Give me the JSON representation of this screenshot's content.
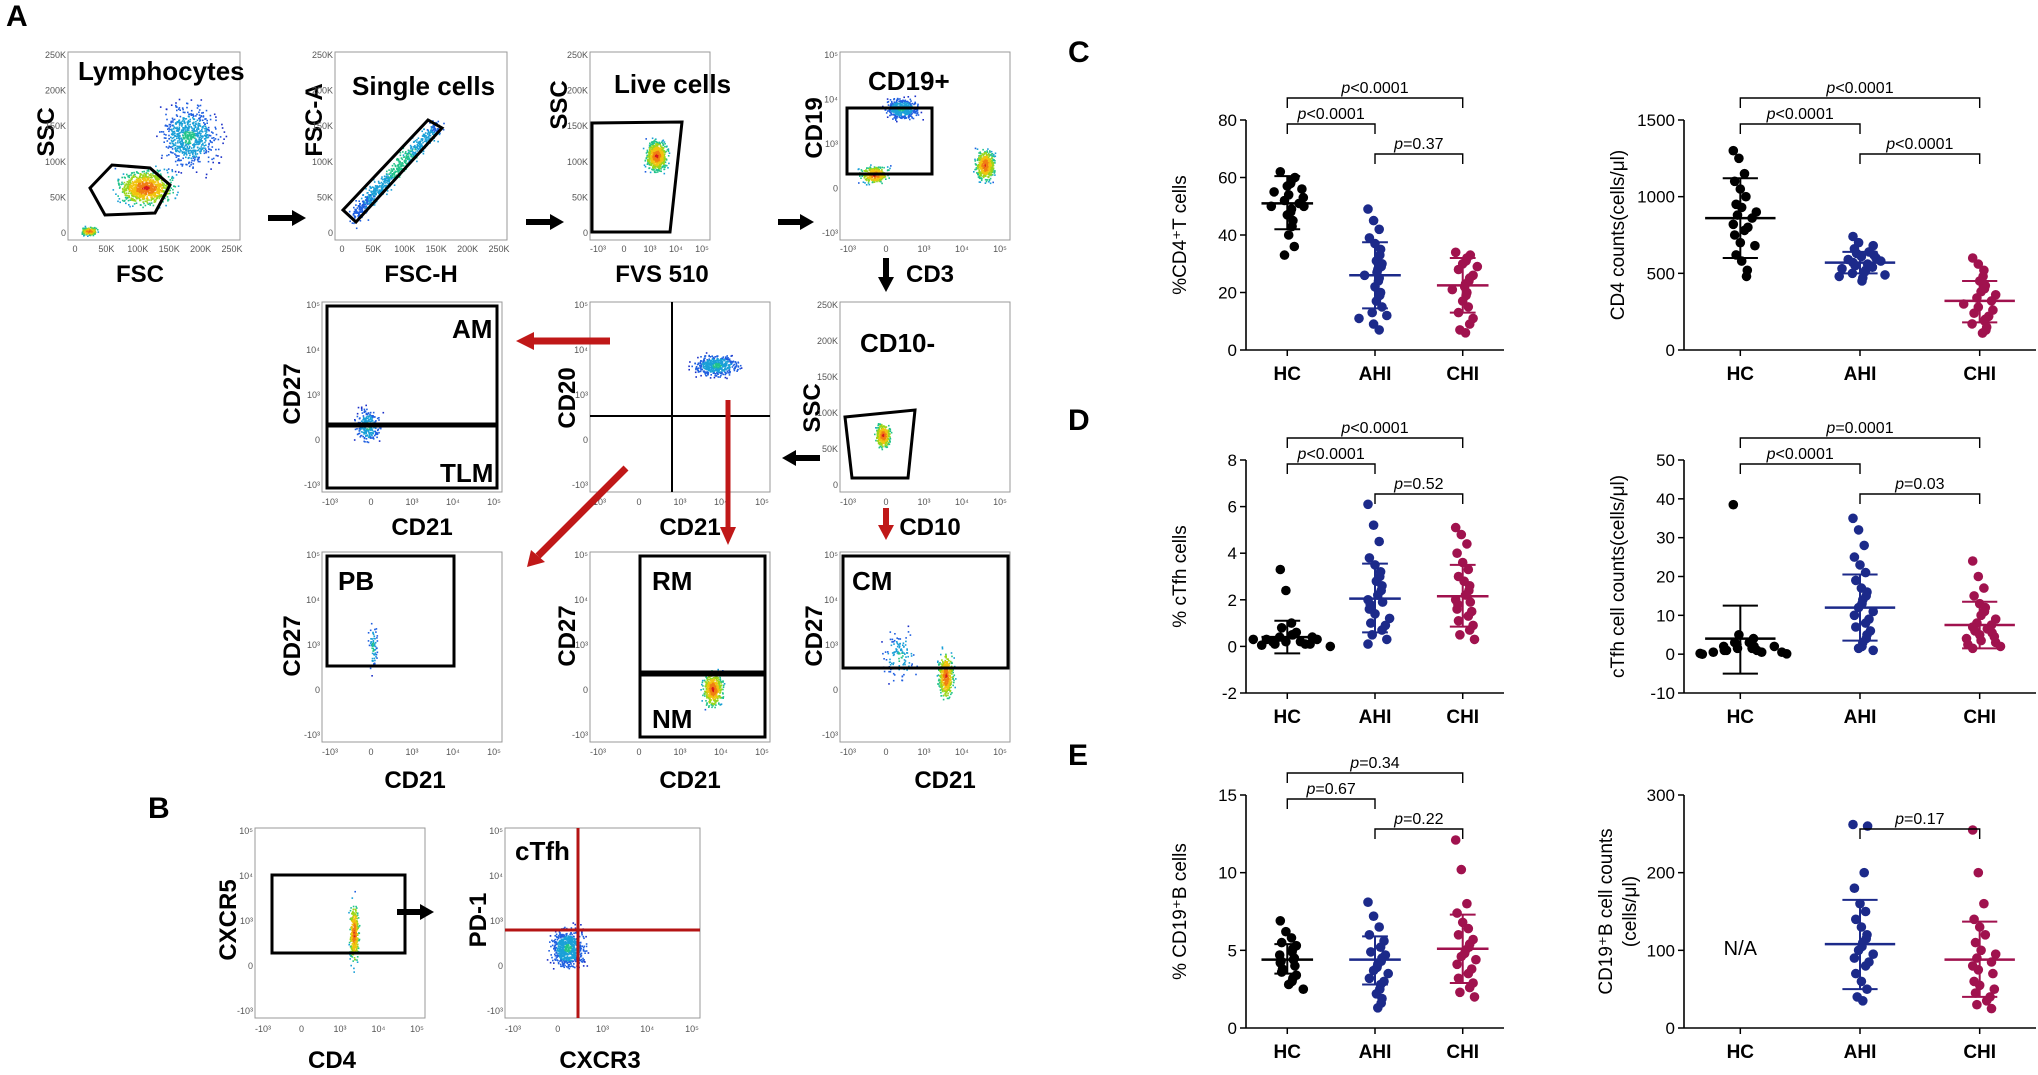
{
  "panels": [
    "A",
    "B",
    "C",
    "D",
    "E"
  ],
  "flow": {
    "plots": [
      {
        "id": "lym",
        "name": "Lymphocytes",
        "x_label": "FSC",
        "y_label": "SSC",
        "x_ticks": [
          "0",
          "50K",
          "100K",
          "150K",
          "200K",
          "250K"
        ],
        "y_ticks": [
          "250K",
          "200K",
          "150K",
          "100K",
          "50K",
          "0"
        ],
        "gates": [
          "Lymphocytes"
        ]
      },
      {
        "id": "sc",
        "name": "Single cells",
        "x_label": "FSC-H",
        "y_label": "FSC-A",
        "x_ticks": [
          "0",
          "50K",
          "100K",
          "150K",
          "200K",
          "250K"
        ],
        "y_ticks": [
          "250K",
          "200K",
          "150K",
          "100K",
          "50K",
          "0"
        ],
        "gates": [
          "Single cells"
        ]
      },
      {
        "id": "live",
        "name": "Live cells",
        "x_label": "FVS 510",
        "y_label": "SSC",
        "x_ticks": [
          "-10³",
          "0",
          "10³",
          "10⁴",
          "10⁵"
        ],
        "y_ticks": [
          "250K",
          "200K",
          "150K",
          "100K",
          "50K",
          "0"
        ],
        "gates": [
          "Live cells"
        ]
      },
      {
        "id": "cd19",
        "name": "CD19+",
        "x_label": "CD3",
        "y_label": "CD19",
        "x_ticks": [
          "-10³",
          "0",
          "10³",
          "10⁴",
          "10⁵"
        ],
        "y_ticks": [
          "10⁵",
          "10⁴",
          "10³",
          "0",
          "-10³"
        ],
        "gates": [
          "CD19+"
        ]
      },
      {
        "id": "cd10",
        "name": "CD10-",
        "x_label": "CD10",
        "y_label": "SSC",
        "x_ticks": [
          "-10³",
          "0",
          "10³",
          "10⁴",
          "10⁵"
        ],
        "y_ticks": [
          "250K",
          "200K",
          "150K",
          "100K",
          "50K",
          "0"
        ],
        "gates": [
          "CD10-"
        ]
      },
      {
        "id": "cd20",
        "name": "",
        "x_label": "CD21",
        "y_label": "CD20",
        "x_ticks": [
          "-10³",
          "0",
          "10³",
          "10⁴",
          "10⁵"
        ],
        "y_ticks": [
          "10⁵",
          "10⁴",
          "10³",
          "0",
          "-10³"
        ],
        "gates": []
      },
      {
        "id": "am",
        "name": "",
        "x_label": "CD21",
        "y_label": "CD27",
        "x_ticks": [
          "-10³",
          "0",
          "10³",
          "10⁴",
          "10⁵"
        ],
        "y_ticks": [
          "10⁵",
          "10⁴",
          "10³",
          "0",
          "-10³"
        ],
        "gates": [
          "AM",
          "TLM"
        ]
      },
      {
        "id": "pb",
        "name": "",
        "x_label": "CD21",
        "y_label": "CD27",
        "x_ticks": [
          "-10³",
          "0",
          "10³",
          "10⁴",
          "10⁵"
        ],
        "y_ticks": [
          "10⁵",
          "10⁴",
          "10³",
          "0",
          "-10³"
        ],
        "gates": [
          "PB"
        ]
      },
      {
        "id": "rm",
        "name": "",
        "x_label": "CD21",
        "y_label": "CD27",
        "x_ticks": [
          "-10³",
          "0",
          "10³",
          "10⁴",
          "10⁵"
        ],
        "y_ticks": [
          "10⁵",
          "10⁴",
          "10³",
          "0",
          "-10³"
        ],
        "gates": [
          "RM",
          "NM"
        ]
      },
      {
        "id": "cm",
        "name": "",
        "x_label": "CD21",
        "y_label": "CD27",
        "x_ticks": [
          "-10³",
          "0",
          "10³",
          "10⁴",
          "10⁵"
        ],
        "y_ticks": [
          "10⁵",
          "10⁴",
          "10³",
          "0",
          "-10³"
        ],
        "gates": [
          "CM"
        ]
      },
      {
        "id": "cxcr5",
        "name": "",
        "x_label": "CD4",
        "y_label": "CXCR5",
        "x_ticks": [
          "-10³",
          "0",
          "10³",
          "10⁴",
          "10⁵"
        ],
        "y_ticks": [
          "10⁵",
          "10⁴",
          "10³",
          "0",
          "-10³"
        ],
        "gates": []
      },
      {
        "id": "pd1",
        "name": "",
        "x_label": "CXCR3",
        "y_label": "PD-1",
        "x_ticks": [
          "-10³",
          "0",
          "10³",
          "10⁴",
          "10⁵"
        ],
        "y_ticks": [
          "10⁵",
          "10⁴",
          "10³",
          "0",
          "-10³"
        ],
        "gates": [
          "cTfh"
        ]
      }
    ]
  },
  "chart_data": [
    {
      "id": "c-left",
      "panel": "C",
      "type": "scatter",
      "title": "",
      "xlabel": "",
      "ylabel": "%CD4⁺T cells",
      "ylabel_lines": [
        "%CD4⁺T cells"
      ],
      "categories": [
        "HC",
        "AHI",
        "CHI"
      ],
      "ylim": [
        0,
        80
      ],
      "yticks": [
        0,
        20,
        40,
        60,
        80
      ],
      "series": [
        {
          "name": "HC",
          "mean": 51,
          "sd_low": 42,
          "sd_high": 60.5,
          "color": "#000000",
          "values": [
            62,
            60,
            59,
            58,
            57,
            56,
            55,
            54,
            53,
            52,
            51,
            50,
            50,
            49,
            48,
            47,
            45,
            43,
            40,
            36,
            33
          ]
        },
        {
          "name": "AHI",
          "mean": 26,
          "sd_low": 14.5,
          "sd_high": 37.5,
          "color": "#1c2a8a",
          "values": [
            49,
            45,
            42,
            39,
            37,
            35,
            33,
            31,
            30,
            29,
            28,
            27,
            26,
            25,
            24,
            22,
            20,
            19,
            17,
            15,
            13,
            12,
            11,
            9,
            7
          ]
        },
        {
          "name": "CHI",
          "mean": 22.5,
          "sd_low": 13,
          "sd_high": 32,
          "color": "#a0124e",
          "values": [
            34,
            33,
            32,
            31,
            30,
            29,
            28,
            26,
            25,
            24,
            23,
            22,
            21,
            20,
            19,
            17,
            15,
            13,
            11,
            9,
            7,
            6
          ]
        }
      ],
      "comparisons": [
        {
          "from": "HC",
          "to": "AHI",
          "level": 1,
          "p_label": "p<0.0001"
        },
        {
          "from": "AHI",
          "to": "CHI",
          "level": 0,
          "p_label": "p=0.37"
        },
        {
          "from": "HC",
          "to": "CHI",
          "level": 2,
          "p_label": "p<0.0001"
        }
      ],
      "note": ""
    },
    {
      "id": "c-right",
      "panel": "C",
      "type": "scatter",
      "title": "",
      "xlabel": "",
      "ylabel": "CD4 counts(cells/μl)",
      "ylabel_lines": [
        "CD4 counts(cells/μl)"
      ],
      "categories": [
        "HC",
        "AHI",
        "CHI"
      ],
      "ylim": [
        0,
        1500
      ],
      "yticks": [
        0,
        500,
        1000,
        1500
      ],
      "series": [
        {
          "name": "HC",
          "mean": 860,
          "sd_low": 600,
          "sd_high": 1120,
          "color": "#000000",
          "values": [
            1300,
            1250,
            1150,
            1100,
            1050,
            1000,
            950,
            930,
            900,
            880,
            860,
            820,
            800,
            780,
            750,
            700,
            680,
            620,
            580,
            520,
            480
          ]
        },
        {
          "name": "AHI",
          "mean": 570,
          "sd_low": 500,
          "sd_high": 640,
          "color": "#1c2a8a",
          "values": [
            740,
            700,
            680,
            660,
            640,
            630,
            620,
            610,
            600,
            590,
            580,
            570,
            560,
            550,
            540,
            530,
            520,
            510,
            500,
            490,
            480,
            470,
            450
          ]
        },
        {
          "name": "CHI",
          "mean": 320,
          "sd_low": 180,
          "sd_high": 450,
          "color": "#a0124e",
          "values": [
            600,
            560,
            520,
            480,
            450,
            420,
            400,
            380,
            360,
            340,
            320,
            300,
            280,
            260,
            240,
            220,
            200,
            190,
            170,
            150,
            130,
            110
          ]
        }
      ],
      "comparisons": [
        {
          "from": "HC",
          "to": "AHI",
          "level": 1,
          "p_label": "p<0.0001"
        },
        {
          "from": "AHI",
          "to": "CHI",
          "level": 0,
          "p_label": "p<0.0001"
        },
        {
          "from": "HC",
          "to": "CHI",
          "level": 2,
          "p_label": "p<0.0001"
        }
      ],
      "note": ""
    },
    {
      "id": "d-left",
      "panel": "D",
      "type": "scatter",
      "title": "",
      "xlabel": "",
      "ylabel": "% cTfh cells",
      "ylabel_lines": [
        "% cTfh cells"
      ],
      "categories": [
        "HC",
        "AHI",
        "CHI"
      ],
      "ylim": [
        -2,
        8
      ],
      "yticks": [
        -2,
        0,
        2,
        4,
        6,
        8
      ],
      "series": [
        {
          "name": "HC",
          "mean": 0.4,
          "sd_low": -0.3,
          "sd_high": 1.1,
          "color": "#000000",
          "values": [
            3.3,
            2.4,
            1.0,
            0.8,
            0.6,
            0.5,
            0.5,
            0.4,
            0.4,
            0.3,
            0.3,
            0.3,
            0.2,
            0.2,
            0.2,
            0.1,
            0.1,
            0.1,
            0.05,
            0.0
          ]
        },
        {
          "name": "AHI",
          "mean": 2.05,
          "sd_low": 0.6,
          "sd_high": 3.55,
          "color": "#1c2a8a",
          "values": [
            6.1,
            5.2,
            4.5,
            3.8,
            3.5,
            3.2,
            3.0,
            2.8,
            2.6,
            2.4,
            2.2,
            2.0,
            1.9,
            1.8,
            1.6,
            1.4,
            1.2,
            1.0,
            0.9,
            0.7,
            0.5,
            0.3,
            0.1
          ]
        },
        {
          "name": "CHI",
          "mean": 2.15,
          "sd_low": 0.85,
          "sd_high": 3.5,
          "color": "#a0124e",
          "values": [
            5.1,
            4.8,
            4.4,
            4.0,
            3.6,
            3.3,
            3.0,
            2.8,
            2.6,
            2.4,
            2.2,
            2.0,
            1.9,
            1.8,
            1.6,
            1.5,
            1.3,
            1.1,
            0.9,
            0.7,
            0.5,
            0.3
          ]
        }
      ],
      "comparisons": [
        {
          "from": "HC",
          "to": "AHI",
          "level": 1,
          "p_label": "p<0.0001"
        },
        {
          "from": "AHI",
          "to": "CHI",
          "level": 0,
          "p_label": "p=0.52"
        },
        {
          "from": "HC",
          "to": "CHI",
          "level": 2,
          "p_label": "p<0.0001"
        }
      ],
      "note": ""
    },
    {
      "id": "d-right",
      "panel": "D",
      "type": "scatter",
      "title": "",
      "xlabel": "",
      "ylabel": "cTfh cell counts(cells/μl)",
      "ylabel_lines": [
        "cTfh cell counts(cells/μl)"
      ],
      "categories": [
        "HC",
        "AHI",
        "CHI"
      ],
      "ylim": [
        -10,
        50
      ],
      "yticks": [
        -10,
        0,
        10,
        20,
        30,
        40,
        50
      ],
      "series": [
        {
          "name": "HC",
          "mean": 4,
          "sd_low": -5,
          "sd_high": 12.5,
          "color": "#000000",
          "values": [
            38.5,
            5,
            4,
            3,
            3,
            2.5,
            2,
            2,
            2,
            1.5,
            1.5,
            1,
            1,
            1,
            0.5,
            0.5,
            0.5,
            0.2,
            0.1,
            0
          ]
        },
        {
          "name": "AHI",
          "mean": 12,
          "sd_low": 3.5,
          "sd_high": 20.5,
          "color": "#1c2a8a",
          "values": [
            35,
            32,
            28,
            25,
            23,
            21,
            19,
            17,
            16,
            15,
            14,
            13,
            12,
            11,
            10,
            9,
            8,
            7,
            6,
            5,
            4,
            3,
            2,
            1.5,
            1
          ]
        },
        {
          "name": "CHI",
          "mean": 7.5,
          "sd_low": 1.5,
          "sd_high": 13.5,
          "color": "#a0124e",
          "values": [
            24,
            20,
            17,
            15,
            13,
            12,
            11,
            10,
            9,
            8,
            7.5,
            7,
            6.5,
            6,
            5.5,
            5,
            4.5,
            4,
            3.5,
            3,
            2.5,
            2,
            1.5
          ]
        }
      ],
      "comparisons": [
        {
          "from": "HC",
          "to": "AHI",
          "level": 1,
          "p_label": "p<0.0001"
        },
        {
          "from": "AHI",
          "to": "CHI",
          "level": 0,
          "p_label": "p=0.03"
        },
        {
          "from": "HC",
          "to": "CHI",
          "level": 2,
          "p_label": "p=0.0001"
        }
      ],
      "note": ""
    },
    {
      "id": "e-left",
      "panel": "E",
      "type": "scatter",
      "title": "",
      "xlabel": "",
      "ylabel": "% CD19⁺B cells",
      "ylabel_lines": [
        "% CD19⁺B cells"
      ],
      "categories": [
        "HC",
        "AHI",
        "CHI"
      ],
      "ylim": [
        0,
        15
      ],
      "yticks": [
        0,
        5,
        10,
        15
      ],
      "series": [
        {
          "name": "HC",
          "mean": 4.4,
          "sd_low": 3.5,
          "sd_high": 5.4,
          "color": "#000000",
          "values": [
            6.9,
            6.2,
            5.8,
            5.5,
            5.3,
            5.1,
            4.9,
            4.7,
            4.5,
            4.4,
            4.3,
            4.2,
            4.0,
            3.8,
            3.6,
            3.4,
            3.2,
            3.0,
            2.8,
            2.5
          ]
        },
        {
          "name": "AHI",
          "mean": 4.4,
          "sd_low": 2.8,
          "sd_high": 5.9,
          "color": "#1c2a8a",
          "values": [
            8.1,
            7.2,
            6.5,
            6.0,
            5.6,
            5.2,
            4.9,
            4.7,
            4.5,
            4.3,
            4.1,
            3.9,
            3.7,
            3.5,
            3.2,
            3.0,
            2.8,
            2.5,
            2.2,
            1.9,
            1.6,
            1.3
          ]
        },
        {
          "name": "CHI",
          "mean": 5.1,
          "sd_low": 2.9,
          "sd_high": 7.3,
          "color": "#a0124e",
          "values": [
            12.1,
            10.2,
            8.0,
            7.4,
            6.8,
            6.4,
            6.0,
            5.7,
            5.4,
            5.2,
            5.0,
            4.8,
            4.6,
            4.4,
            4.1,
            3.8,
            3.5,
            3.2,
            2.9,
            2.6,
            2.3,
            2.0
          ]
        }
      ],
      "comparisons": [
        {
          "from": "HC",
          "to": "AHI",
          "level": 1,
          "p_label": "p=0.67"
        },
        {
          "from": "AHI",
          "to": "CHI",
          "level": 0,
          "p_label": "p=0.22"
        },
        {
          "from": "HC",
          "to": "CHI",
          "level": 2,
          "p_label": "p=0.34"
        }
      ],
      "note": ""
    },
    {
      "id": "e-right",
      "panel": "E",
      "type": "scatter",
      "title": "",
      "xlabel": "",
      "ylabel": "CD19⁺B cell counts (cells/μl)",
      "ylabel_lines": [
        "CD19⁺B cell counts",
        "(cells/μl)"
      ],
      "categories": [
        "HC",
        "AHI",
        "CHI"
      ],
      "ylim": [
        0,
        300
      ],
      "yticks": [
        0,
        100,
        200,
        300
      ],
      "series": [
        {
          "name": "HC",
          "mean": null,
          "sd_low": null,
          "sd_high": null,
          "color": "#000000",
          "values": []
        },
        {
          "name": "AHI",
          "mean": 108,
          "sd_low": 50,
          "sd_high": 165,
          "color": "#1c2a8a",
          "values": [
            262,
            260,
            200,
            180,
            160,
            150,
            140,
            130,
            120,
            115,
            110,
            105,
            100,
            95,
            90,
            85,
            80,
            70,
            60,
            50,
            40,
            35
          ]
        },
        {
          "name": "CHI",
          "mean": 88,
          "sd_low": 40,
          "sd_high": 137,
          "color": "#a0124e",
          "values": [
            255,
            200,
            160,
            140,
            130,
            120,
            110,
            100,
            95,
            90,
            85,
            80,
            75,
            70,
            60,
            55,
            50,
            45,
            40,
            35,
            30,
            25
          ]
        }
      ],
      "comparisons": [
        {
          "from": "AHI",
          "to": "CHI",
          "level": 0,
          "p_label": "p=0.17"
        }
      ],
      "note": "N/A"
    }
  ]
}
